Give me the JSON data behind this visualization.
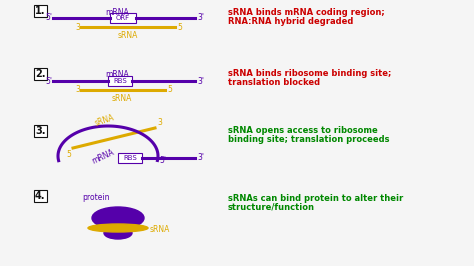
{
  "bg_color": "#f5f5f5",
  "purple": "#5500aa",
  "gold": "#ddaa00",
  "red": "#cc0000",
  "green": "#008800",
  "black": "#111111",
  "sections": [
    {
      "num": "1.",
      "desc1": "sRNA binds mRNA coding region;",
      "desc2": "RNA:RNA hybrid degraded",
      "desc_color": "red"
    },
    {
      "num": "2.",
      "desc1": "sRNA binds ribosome binding site;",
      "desc2": "translation blocked",
      "desc_color": "red"
    },
    {
      "num": "3.",
      "desc1": "sRNA opens access to ribosome",
      "desc2": "binding site; translation proceeds",
      "desc_color": "green"
    },
    {
      "num": "4.",
      "desc1": "sRNAs can bind protein to alter their",
      "desc2": "structure/function",
      "desc_color": "green"
    }
  ]
}
